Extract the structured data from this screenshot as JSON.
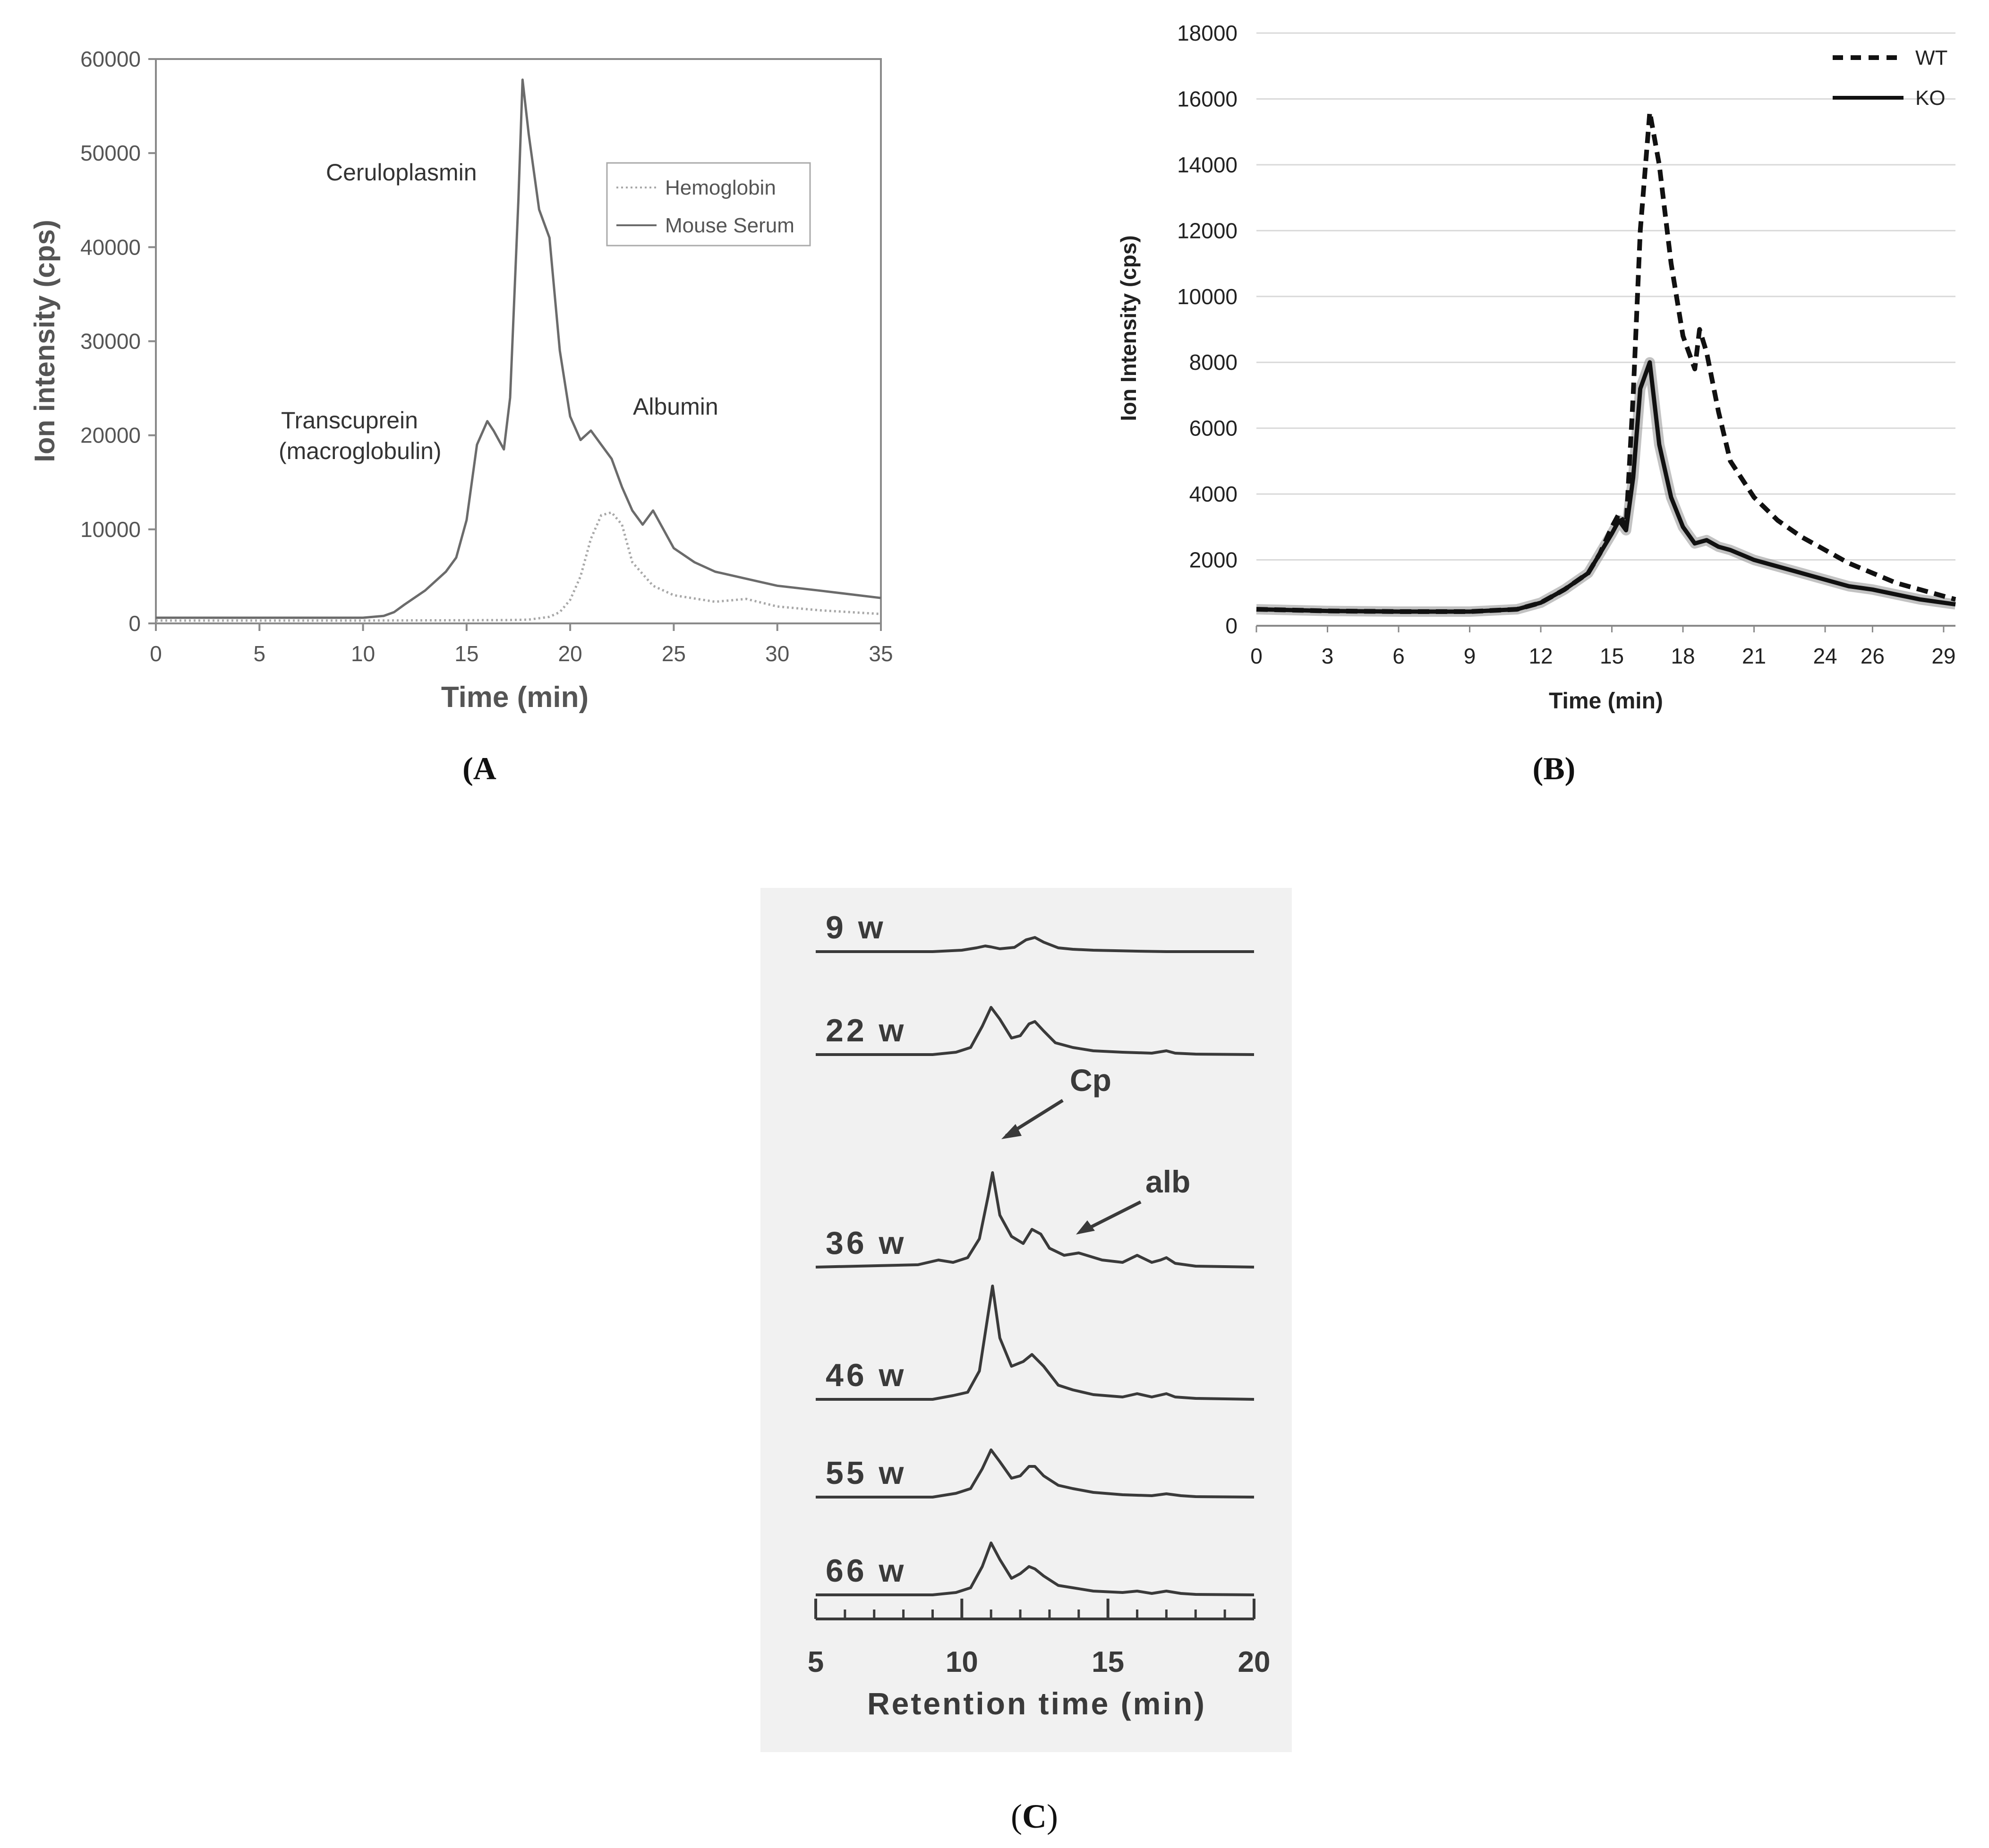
{
  "panels": {
    "a": {
      "caption": "(A"
    },
    "b": {
      "caption": "(B)"
    },
    "c": {
      "caption_open": "(",
      "caption_letter": "C",
      "caption_close": ")"
    }
  },
  "colors": {
    "axis": "#8a8a8a",
    "grid_b": "#d9d9d9",
    "serum": "#6b6b6b",
    "hemoglobin": "#a8a8a8",
    "wt": "#111111",
    "ko": "#111111",
    "ko_shadow": "#9a9a9a",
    "scan_bg": "#f1f1f1",
    "scan_ink": "#3a3a3a"
  },
  "chart_data": [
    {
      "id": "a",
      "type": "line",
      "title": "",
      "xlabel": "Time (min)",
      "ylabel": "Ion intensity (cps)",
      "xlim": [
        0,
        35
      ],
      "ylim": [
        0,
        60000
      ],
      "x_ticks": [
        0,
        5,
        10,
        15,
        20,
        25,
        30,
        35
      ],
      "y_ticks": [
        0,
        10000,
        20000,
        30000,
        40000,
        50000,
        60000
      ],
      "grid": false,
      "legend_position": "top-right",
      "series": [
        {
          "name": "Hemoglobin",
          "style": "dotted",
          "x": [
            0,
            10,
            17,
            18,
            19,
            19.5,
            20,
            20.5,
            21,
            21.5,
            22,
            22.5,
            23,
            24,
            25,
            27,
            28.5,
            30,
            32,
            35
          ],
          "y": [
            300,
            300,
            350,
            400,
            700,
            1200,
            2500,
            5000,
            9000,
            11500,
            11800,
            10500,
            6500,
            4000,
            3000,
            2300,
            2600,
            1800,
            1400,
            1000
          ]
        },
        {
          "name": "Mouse Serum",
          "style": "solid",
          "x": [
            0,
            5,
            10,
            11,
            11.5,
            12,
            13,
            13.5,
            14,
            14.5,
            15,
            15.5,
            16,
            16.3,
            16.8,
            17.1,
            17.5,
            17.7,
            18,
            18.5,
            19,
            19.5,
            20,
            20.5,
            21,
            21.5,
            22,
            22.5,
            23,
            23.5,
            24,
            24.5,
            25,
            26,
            27,
            28,
            29,
            30,
            32,
            35
          ],
          "y": [
            600,
            600,
            600,
            800,
            1200,
            2000,
            3500,
            4500,
            5500,
            7000,
            11000,
            19000,
            21500,
            20500,
            18500,
            24000,
            45000,
            57800,
            52000,
            44000,
            41000,
            29000,
            22000,
            19500,
            20500,
            19000,
            17500,
            14500,
            12000,
            10500,
            12000,
            10000,
            8000,
            6500,
            5500,
            5000,
            4500,
            4000,
            3500,
            2700
          ]
        }
      ],
      "annotations": [
        "Ceruloplasmin",
        "Transcuprein",
        "(macroglobulin)",
        "Albumin"
      ]
    },
    {
      "id": "b",
      "type": "line",
      "title": "",
      "xlabel": "Time (min)",
      "ylabel": "Ion Intensity (cps)",
      "xlim": [
        0,
        29.5
      ],
      "ylim": [
        0,
        18000
      ],
      "x_ticks": [
        0,
        3,
        6,
        9,
        12,
        15,
        18,
        21,
        24,
        26,
        29
      ],
      "y_ticks": [
        0,
        2000,
        4000,
        6000,
        8000,
        10000,
        12000,
        14000,
        16000,
        18000
      ],
      "grid": true,
      "legend_position": "top-right",
      "series": [
        {
          "name": "WT",
          "style": "dashed",
          "x": [
            0,
            3,
            6,
            9,
            11,
            12,
            13,
            14,
            14.5,
            15,
            15.3,
            15.6,
            15.9,
            16.2,
            16.6,
            17,
            17.5,
            18,
            18.5,
            18.7,
            19,
            19.5,
            20,
            21,
            22,
            23,
            24,
            25,
            26,
            27,
            28,
            29,
            29.5
          ],
          "y": [
            500,
            450,
            430,
            430,
            500,
            700,
            1100,
            1600,
            2200,
            3000,
            3400,
            3000,
            7000,
            12000,
            15600,
            14000,
            11000,
            8800,
            7800,
            9000,
            8300,
            6500,
            5000,
            3900,
            3200,
            2700,
            2300,
            1900,
            1600,
            1300,
            1100,
            900,
            800
          ]
        },
        {
          "name": "KO",
          "style": "solid",
          "x": [
            0,
            3,
            6,
            9,
            11,
            12,
            13,
            14,
            14.5,
            15,
            15.3,
            15.6,
            15.9,
            16.2,
            16.6,
            17,
            17.5,
            18,
            18.5,
            19,
            19.5,
            20,
            21,
            22,
            23,
            24,
            25,
            26,
            27,
            28,
            29,
            29.5
          ],
          "y": [
            500,
            450,
            430,
            430,
            500,
            700,
            1100,
            1600,
            2200,
            2800,
            3200,
            2900,
            4500,
            7200,
            8000,
            5500,
            3900,
            3000,
            2500,
            2600,
            2400,
            2300,
            2000,
            1800,
            1600,
            1400,
            1200,
            1100,
            950,
            800,
            700,
            650
          ]
        }
      ],
      "annotations": []
    },
    {
      "id": "c",
      "type": "line",
      "title": "",
      "xlabel": "Retention time (min)",
      "ylabel": "",
      "xlim": [
        5,
        20
      ],
      "x_ticks": [
        5,
        10,
        15,
        20
      ],
      "grid": false,
      "series": [
        {
          "name": "9 w",
          "x": [
            5,
            9,
            10,
            10.5,
            10.8,
            11,
            11.3,
            11.8,
            12.2,
            12.5,
            12.8,
            13.3,
            13.8,
            14.5,
            16,
            17,
            20
          ],
          "y": [
            0,
            0,
            3,
            8,
            12,
            10,
            6,
            9,
            25,
            30,
            20,
            8,
            5,
            3,
            1,
            0,
            0
          ]
        },
        {
          "name": "22 w",
          "x": [
            5,
            9,
            9.8,
            10.3,
            10.7,
            11,
            11.3,
            11.7,
            12,
            12.3,
            12.5,
            12.8,
            13.2,
            13.8,
            14.5,
            15.5,
            16.5,
            17,
            17.3,
            18,
            20
          ],
          "y": [
            0,
            0,
            5,
            15,
            60,
            100,
            75,
            35,
            40,
            65,
            70,
            50,
            25,
            15,
            8,
            5,
            3,
            8,
            3,
            1,
            0
          ]
        },
        {
          "name": "36 w",
          "x": [
            5,
            8.5,
            9.2,
            9.7,
            10.2,
            10.6,
            10.9,
            11.05,
            11.3,
            11.7,
            12.1,
            12.4,
            12.7,
            13.0,
            13.5,
            14,
            14.8,
            15.5,
            16,
            16.5,
            16.8,
            17,
            17.3,
            18,
            20
          ],
          "y": [
            0,
            5,
            15,
            10,
            20,
            60,
            150,
            200,
            110,
            65,
            50,
            80,
            70,
            40,
            25,
            30,
            15,
            10,
            25,
            10,
            15,
            20,
            8,
            2,
            0
          ]
        },
        {
          "name": "46 w",
          "x": [
            5,
            9,
            9.7,
            10.2,
            10.6,
            10.9,
            11.05,
            11.3,
            11.7,
            12.1,
            12.4,
            12.8,
            13.3,
            13.8,
            14.5,
            15.5,
            16,
            16.5,
            17,
            17.3,
            18,
            20
          ],
          "y": [
            0,
            0,
            8,
            15,
            60,
            180,
            240,
            130,
            70,
            80,
            95,
            70,
            30,
            20,
            10,
            5,
            12,
            5,
            12,
            5,
            2,
            0
          ]
        },
        {
          "name": "55 w",
          "x": [
            5,
            9,
            9.8,
            10.3,
            10.7,
            11,
            11.3,
            11.7,
            12,
            12.3,
            12.5,
            12.8,
            13.3,
            13.8,
            14.5,
            15.5,
            16.5,
            17,
            17.5,
            18,
            20
          ],
          "y": [
            0,
            0,
            8,
            18,
            60,
            100,
            75,
            40,
            45,
            65,
            65,
            45,
            25,
            18,
            10,
            5,
            3,
            7,
            3,
            1,
            0
          ]
        },
        {
          "name": "66 w",
          "x": [
            5,
            9,
            9.8,
            10.3,
            10.7,
            11,
            11.3,
            11.7,
            12,
            12.3,
            12.5,
            12.8,
            13.3,
            13.8,
            14.5,
            15.5,
            16,
            16.5,
            17,
            17.5,
            18,
            20
          ],
          "y": [
            0,
            0,
            5,
            15,
            60,
            110,
            75,
            35,
            45,
            60,
            55,
            40,
            20,
            15,
            8,
            5,
            8,
            3,
            8,
            3,
            1,
            0
          ]
        }
      ],
      "annotations": [
        "Cp",
        "alb"
      ]
    }
  ]
}
